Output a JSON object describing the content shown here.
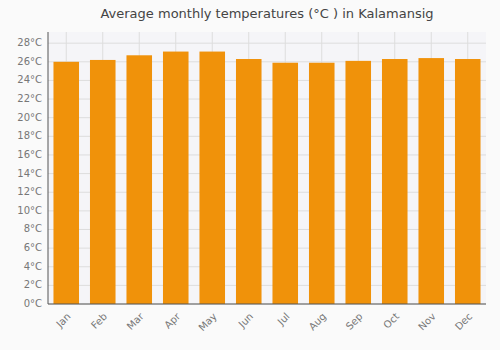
{
  "chart_data": {
    "type": "bar",
    "title": "Average monthly temperatures (°C ) in Kalamansig",
    "categories": [
      "Jan",
      "Feb",
      "Mar",
      "Apr",
      "May",
      "Jun",
      "Jul",
      "Aug",
      "Sep",
      "Oct",
      "Nov",
      "Dec"
    ],
    "values": [
      26.0,
      26.2,
      26.7,
      27.1,
      27.1,
      26.3,
      25.9,
      25.9,
      26.1,
      26.3,
      26.4,
      26.3
    ],
    "color": "#F0920A",
    "ylim": [
      0,
      29.2
    ],
    "yticks": [
      {
        "value": 0,
        "label": "0°C"
      },
      {
        "value": 2,
        "label": "2°C"
      },
      {
        "value": 4,
        "label": "4°C"
      },
      {
        "value": 6,
        "label": "6°C"
      },
      {
        "value": 8,
        "label": "8°C"
      },
      {
        "value": 10,
        "label": "10°C"
      },
      {
        "value": 12,
        "label": "12°C"
      },
      {
        "value": 14,
        "label": "14°C"
      },
      {
        "value": 16,
        "label": "16°C"
      },
      {
        "value": 18,
        "label": "18°C"
      },
      {
        "value": 20,
        "label": "20°C"
      },
      {
        "value": 22,
        "label": "22°C"
      },
      {
        "value": 24,
        "label": "24°C"
      },
      {
        "value": 26,
        "label": "26°C"
      },
      {
        "value": 28,
        "label": "28°C"
      }
    ],
    "grid": true
  }
}
